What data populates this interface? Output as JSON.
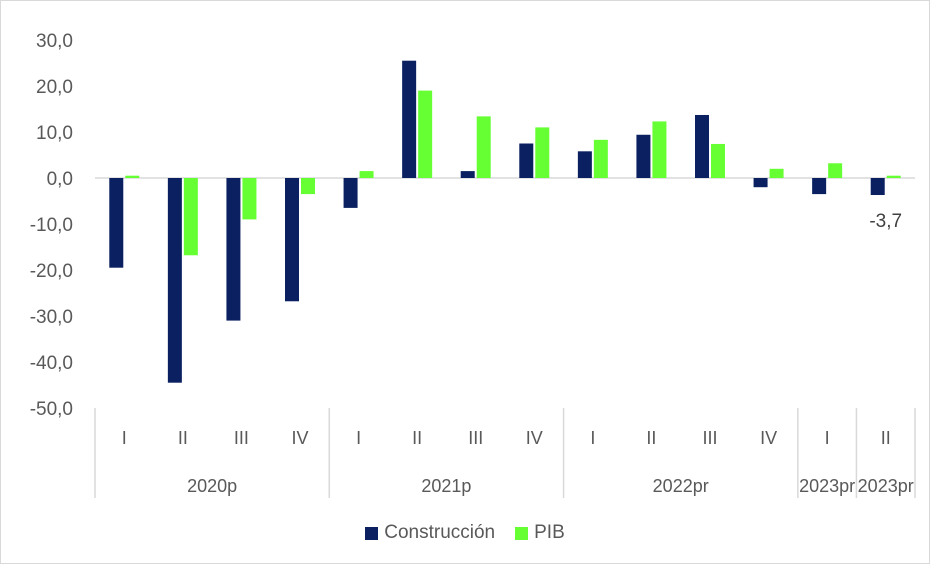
{
  "chart_data": {
    "type": "bar",
    "ylim": [
      -50,
      30
    ],
    "y_ticks": [
      "30,0",
      "20,0",
      "10,0",
      "0,0",
      "-10,0",
      "-20,0",
      "-30,0",
      "-40,0",
      "-50,0"
    ],
    "y_tick_values": [
      30,
      20,
      10,
      0,
      -10,
      -20,
      -30,
      -40,
      -50
    ],
    "categories": [
      "I",
      "II",
      "III",
      "IV",
      "I",
      "II",
      "III",
      "IV",
      "I",
      "II",
      "III",
      "IV",
      "I",
      "II"
    ],
    "groups": [
      {
        "label": "2020p",
        "count": 4
      },
      {
        "label": "2021p",
        "count": 4
      },
      {
        "label": "2022pr",
        "count": 4
      },
      {
        "label": "2023pr",
        "count": 1
      },
      {
        "label": "2023pr",
        "count": 1
      }
    ],
    "series": [
      {
        "name": "Construcción",
        "color": "#0b2060",
        "values": [
          -19.5,
          -44.5,
          -31.0,
          -26.8,
          -6.5,
          25.5,
          1.5,
          7.5,
          5.8,
          9.4,
          13.7,
          -2.0,
          -3.5,
          -3.7
        ]
      },
      {
        "name": "PIB",
        "color": "#66ff33",
        "values": [
          0.5,
          -16.8,
          -9.0,
          -3.5,
          1.5,
          19.0,
          13.4,
          11.0,
          8.3,
          12.3,
          7.4,
          2.0,
          3.2,
          0.5
        ]
      }
    ],
    "data_labels": [
      {
        "series": 0,
        "index": 13,
        "text": "-3,7"
      }
    ],
    "legend_position": "bottom",
    "grid": false
  }
}
